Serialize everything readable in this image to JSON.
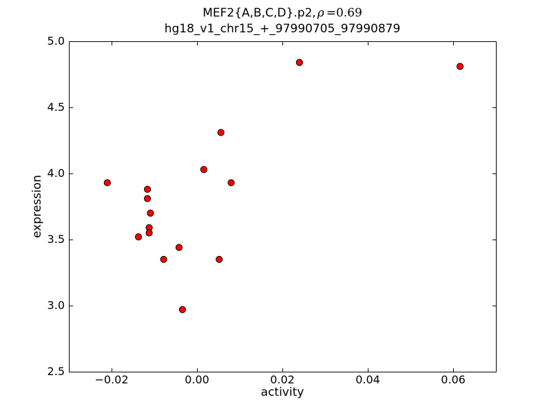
{
  "figure": {
    "title_prefix": "MEF2{A,B,C,D}.p2,",
    "title_rho": "ρ",
    "title_rho_value": "=0.69",
    "subtitle": "hg18_v1_chr15_+_97990705_97990879"
  },
  "chart_data": {
    "type": "scatter",
    "title": "MEF2{A,B,C,D}.p2, ρ=0.69",
    "subtitle": "hg18_v1_chr15_+_97990705_97990879",
    "xlabel": "activity",
    "ylabel": "expression",
    "xlim": [
      -0.03,
      0.07
    ],
    "ylim": [
      2.5,
      5.0
    ],
    "grid": false,
    "legend": "none",
    "xticks": {
      "values": [
        -0.02,
        0.0,
        0.02,
        0.04,
        0.06
      ],
      "labels": [
        "−0.02",
        "0.00",
        "0.02",
        "0.04",
        "0.06"
      ]
    },
    "yticks": {
      "values": [
        2.5,
        3.0,
        3.5,
        4.0,
        4.5,
        5.0
      ],
      "labels": [
        "2.5",
        "3.0",
        "3.5",
        "4.0",
        "4.5",
        "5.0"
      ]
    },
    "marker": {
      "shape": "circle",
      "fill_color": "#ff0000",
      "edge_color": "#000000",
      "radius_px": 4.6
    },
    "frame_color": "#000000",
    "points": [
      {
        "activity": -0.021,
        "expression": 3.93
      },
      {
        "activity": -0.0137,
        "expression": 3.52
      },
      {
        "activity": -0.0116,
        "expression": 3.88
      },
      {
        "activity": -0.0116,
        "expression": 3.81
      },
      {
        "activity": -0.0109,
        "expression": 3.7
      },
      {
        "activity": -0.0112,
        "expression": 3.59
      },
      {
        "activity": -0.0112,
        "expression": 3.55
      },
      {
        "activity": -0.0078,
        "expression": 3.35
      },
      {
        "activity": -0.0042,
        "expression": 3.44
      },
      {
        "activity": -0.0034,
        "expression": 2.97
      },
      {
        "activity": 0.0016,
        "expression": 4.03
      },
      {
        "activity": 0.0052,
        "expression": 3.35
      },
      {
        "activity": 0.0056,
        "expression": 4.31
      },
      {
        "activity": 0.008,
        "expression": 3.93
      },
      {
        "activity": 0.024,
        "expression": 4.84
      },
      {
        "activity": 0.0616,
        "expression": 4.81
      }
    ]
  }
}
